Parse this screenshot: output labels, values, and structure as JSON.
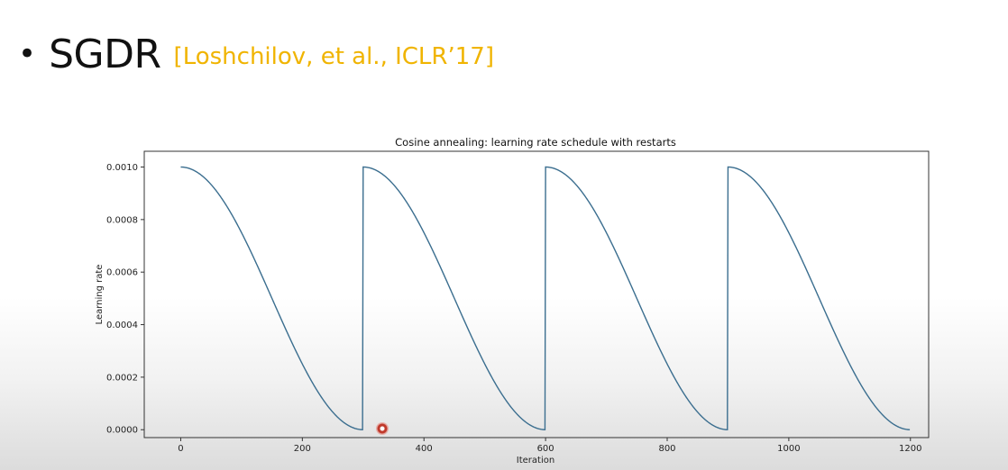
{
  "slide": {
    "bullet": "•",
    "title": "SGDR",
    "citation": "[Loshchilov, et al., ICLR’17]"
  },
  "chart_data": {
    "type": "line",
    "title": "Cosine annealing: learning rate schedule with restarts",
    "xlabel": "Iteration",
    "ylabel": "Learning rate",
    "xlim": [
      -60,
      1230
    ],
    "ylim": [
      -3e-05,
      0.00106
    ],
    "x_ticks": [
      0,
      200,
      400,
      600,
      800,
      1000,
      1200
    ],
    "x_tick_labels": [
      "0",
      "200",
      "400",
      "600",
      "800",
      "1000",
      "1200"
    ],
    "y_ticks": [
      0.0,
      0.0002,
      0.0004,
      0.0006,
      0.0008,
      0.001
    ],
    "y_tick_labels": [
      "0.0000",
      "0.0002",
      "0.0004",
      "0.0006",
      "0.0008",
      "0.0010"
    ],
    "grid": false,
    "series": [
      {
        "color": "#3b6e8f",
        "cycle_length": 300,
        "cycles": 4,
        "lr_max": 0.001,
        "lr_min": 0.0,
        "x": [
          0,
          50,
          100,
          150,
          200,
          250,
          299,
          300,
          350,
          400,
          450,
          500,
          550,
          599,
          600,
          650,
          700,
          750,
          800,
          850,
          899,
          900,
          950,
          1000,
          1050,
          1100,
          1150,
          1199
        ],
        "y": [
          0.001,
          0.000933,
          0.00075,
          0.0005,
          0.00025,
          6.7e-05,
          0.0,
          0.001,
          0.000933,
          0.00075,
          0.0005,
          0.00025,
          6.7e-05,
          0.0,
          0.001,
          0.000933,
          0.00075,
          0.0005,
          0.00025,
          6.7e-05,
          0.0,
          0.001,
          0.000933,
          0.00075,
          0.0005,
          0.00025,
          6.7e-05,
          0.0
        ]
      }
    ]
  }
}
